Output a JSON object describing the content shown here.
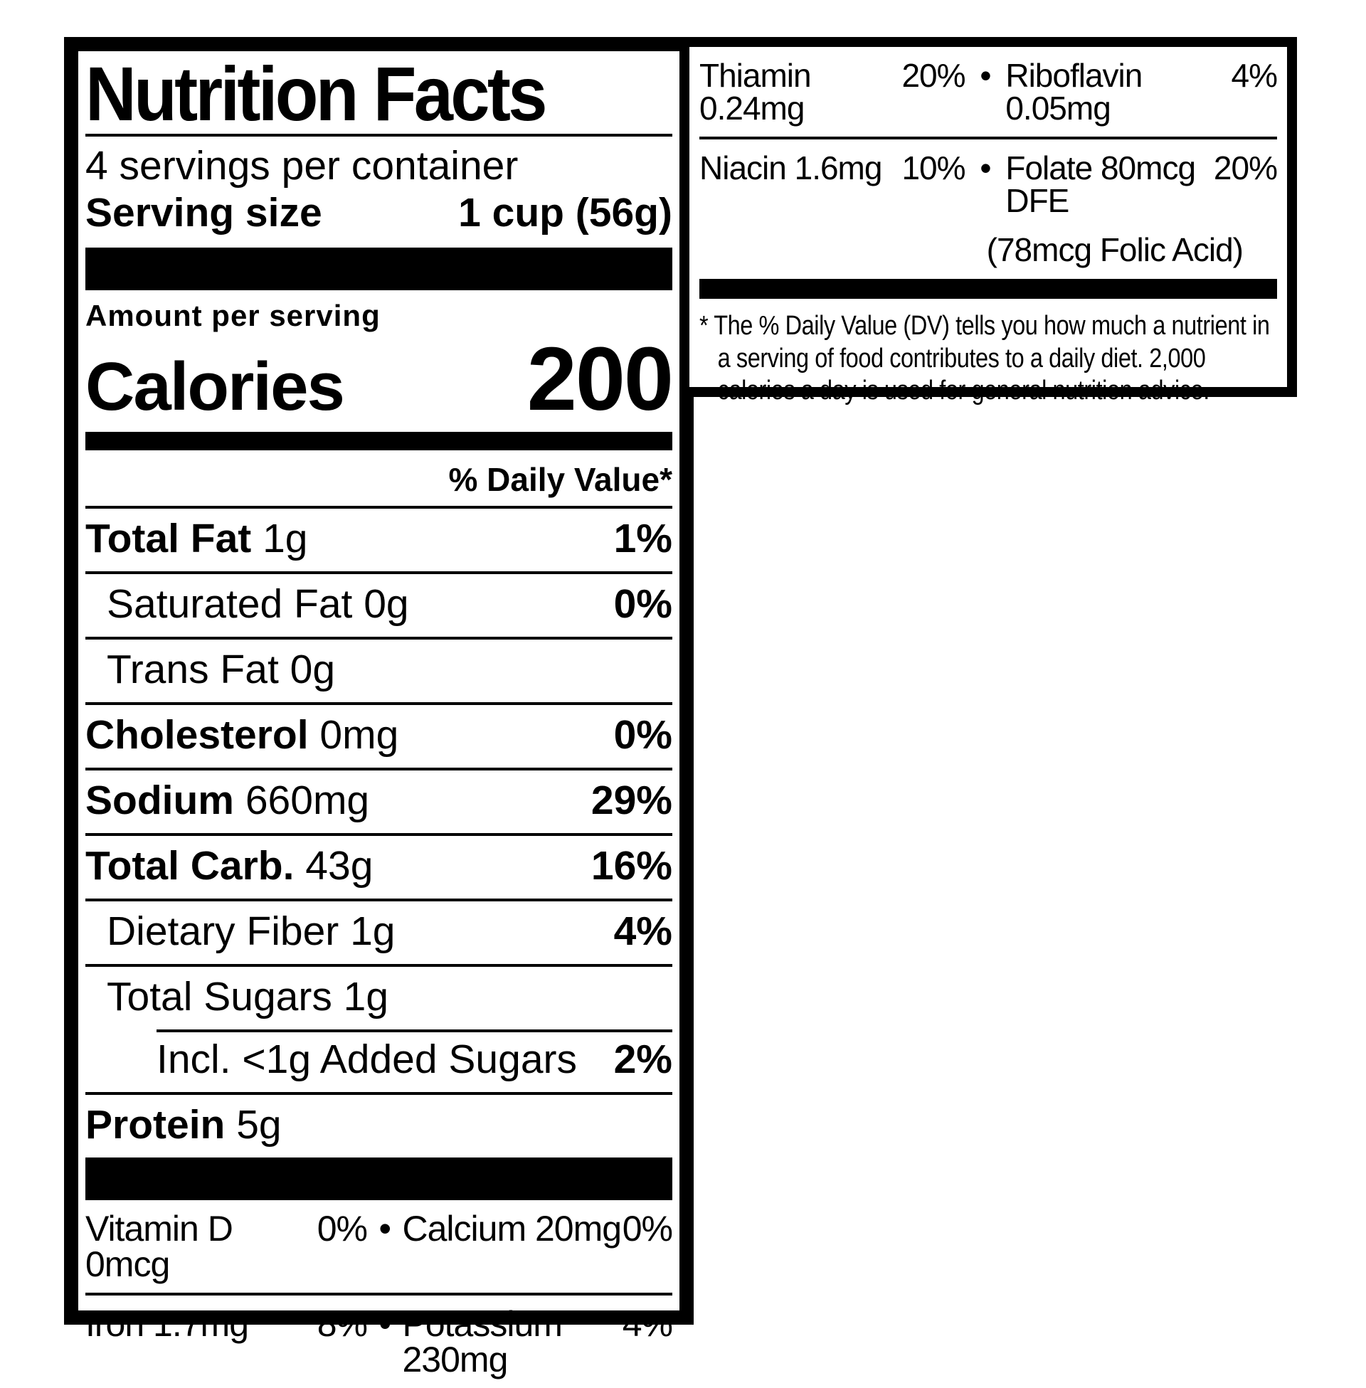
{
  "colors": {
    "ink": "#000000",
    "paper": "#ffffff"
  },
  "bullet": "•",
  "label": {
    "title": "Nutrition Facts",
    "servings_per_container": "4 servings per container",
    "serving_size_label": "Serving size",
    "serving_size_value": "1 cup (56g)",
    "amount_per_serving": "Amount per serving",
    "calories_label": "Calories",
    "calories_value": "200",
    "daily_value_header": "% Daily Value*",
    "rows": [
      {
        "name": "Total Fat",
        "amount": "1g",
        "dv": "1%",
        "bold": true,
        "indent": 0,
        "rule_indent": false
      },
      {
        "name": "Saturated Fat",
        "amount": "0g",
        "dv": "0%",
        "bold": false,
        "indent": 1,
        "rule_indent": false
      },
      {
        "name": "Trans Fat",
        "amount": "0g",
        "dv": "",
        "bold": false,
        "indent": 1,
        "rule_indent": false
      },
      {
        "name": "Cholesterol",
        "amount": "0mg",
        "dv": "0%",
        "bold": true,
        "indent": 0,
        "rule_indent": false
      },
      {
        "name": "Sodium",
        "amount": "660mg",
        "dv": "29%",
        "bold": true,
        "indent": 0,
        "rule_indent": false
      },
      {
        "name": "Total Carb.",
        "amount": "43g",
        "dv": "16%",
        "bold": true,
        "indent": 0,
        "rule_indent": false
      },
      {
        "name": "Dietary Fiber",
        "amount": "1g",
        "dv": "4%",
        "bold": false,
        "indent": 1,
        "rule_indent": false
      },
      {
        "name": "Total Sugars",
        "amount": "1g",
        "dv": "",
        "bold": false,
        "indent": 1,
        "rule_indent": false
      },
      {
        "name": "Incl. <1g Added Sugars",
        "amount": "",
        "dv": "2%",
        "bold": false,
        "indent": 2,
        "rule_indent": true
      },
      {
        "name": "Protein",
        "amount": "5g",
        "dv": "",
        "bold": true,
        "indent": 0,
        "rule_indent": false
      }
    ],
    "micronutrients": [
      {
        "left_name": "Vitamin D 0mcg",
        "left_dv": "0%",
        "right_name": "Calcium 20mg",
        "right_dv": "0%"
      },
      {
        "left_name": "Iron 1.7mg",
        "left_dv": "8%",
        "right_name": "Potassium 230mg",
        "right_dv": "4%"
      }
    ],
    "side_panel": {
      "rows": [
        {
          "left_name": "Thiamin 0.24mg",
          "left_dv": "20%",
          "right_name": "Riboflavin 0.05mg",
          "right_dv": "4%",
          "sub": ""
        },
        {
          "left_name": "Niacin 1.6mg",
          "left_dv": "10%",
          "right_name": "Folate 80mcg DFE",
          "right_dv": "20%",
          "sub": "(78mcg Folic Acid)"
        }
      ],
      "footnote_marker": "*",
      "footnote": "The % Daily Value (DV) tells you how much a nutrient in a serving of food contributes to a daily diet. 2,000 calories a day is used for general nutrition advice."
    }
  }
}
